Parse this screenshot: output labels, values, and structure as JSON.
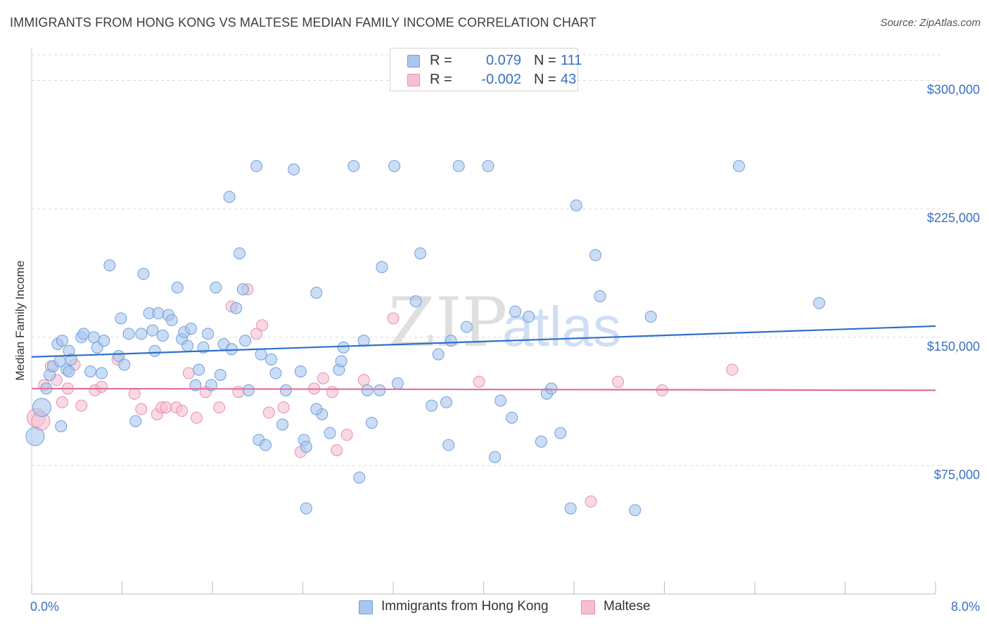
{
  "title": "IMMIGRANTS FROM HONG KONG VS MALTESE MEDIAN FAMILY INCOME CORRELATION CHART",
  "source": "Source: ZipAtlas.com",
  "watermark": {
    "zip": "ZIP",
    "atlas": "atlas"
  },
  "colors": {
    "blue_fill": "#a9c6ef",
    "blue_stroke": "#6f9edb",
    "blue_line": "#2f6fcd",
    "pink_fill": "#f5bfd1",
    "pink_stroke": "#e78fae",
    "pink_line": "#e0709a",
    "axis_text": "#3a6fc4",
    "grid": "#d9d9d9"
  },
  "legend": {
    "rows": [
      {
        "label": "R =",
        "r_value": "0.079",
        "n_label": "N =",
        "n_value": "111",
        "series": "blue"
      },
      {
        "label": "R =",
        "r_value": "-0.002",
        "n_label": "N =",
        "n_value": "43",
        "series": "pink"
      }
    ]
  },
  "bottom_legend": [
    {
      "label": "Immigrants from Hong Kong",
      "series": "blue"
    },
    {
      "label": "Maltese",
      "series": "pink"
    }
  ],
  "chart_data": {
    "type": "scatter",
    "xlabel": "",
    "ylabel": "Median Family Income",
    "xlim": [
      0,
      8
    ],
    "ylim": [
      0,
      315000
    ],
    "x_tick_labels": {
      "min": "0.0%",
      "max": "8.0%"
    },
    "y_ticks": [
      {
        "value": 75000,
        "label": "$75,000"
      },
      {
        "value": 150000,
        "label": "$150,000"
      },
      {
        "value": 225000,
        "label": "$225,000"
      },
      {
        "value": 300000,
        "label": "$300,000"
      }
    ],
    "grid": "horizontal dashed",
    "series": [
      {
        "name": "Immigrants from Hong Kong",
        "color": "blue",
        "trend": {
          "start": [
            0,
            138500
          ],
          "end": [
            8,
            156500
          ]
        },
        "points": [
          [
            0.03,
            92000
          ],
          [
            0.09,
            109000
          ],
          [
            0.13,
            120000
          ],
          [
            0.16,
            128000
          ],
          [
            0.19,
            133000
          ],
          [
            0.23,
            146000
          ],
          [
            0.25,
            136000
          ],
          [
            0.26,
            98000
          ],
          [
            0.27,
            148000
          ],
          [
            0.31,
            131000
          ],
          [
            0.33,
            142000
          ],
          [
            0.35,
            137000
          ],
          [
            0.44,
            150000
          ],
          [
            0.46,
            152000
          ],
          [
            0.52,
            130000
          ],
          [
            0.55,
            150000
          ],
          [
            0.58,
            144000
          ],
          [
            0.62,
            129000
          ],
          [
            0.64,
            148000
          ],
          [
            0.69,
            192000
          ],
          [
            0.77,
            139000
          ],
          [
            0.79,
            161000
          ],
          [
            0.82,
            134000
          ],
          [
            0.86,
            152000
          ],
          [
            0.92,
            101000
          ],
          [
            0.97,
            152000
          ],
          [
            0.99,
            187000
          ],
          [
            1.04,
            164000
          ],
          [
            1.07,
            154000
          ],
          [
            1.09,
            142000
          ],
          [
            1.12,
            164000
          ],
          [
            1.16,
            151000
          ],
          [
            1.21,
            163000
          ],
          [
            1.24,
            160000
          ],
          [
            1.29,
            179000
          ],
          [
            1.33,
            149000
          ],
          [
            1.35,
            153000
          ],
          [
            1.38,
            145000
          ],
          [
            1.41,
            155000
          ],
          [
            1.45,
            122000
          ],
          [
            1.48,
            131000
          ],
          [
            1.52,
            144000
          ],
          [
            1.56,
            152000
          ],
          [
            1.59,
            122000
          ],
          [
            1.63,
            179000
          ],
          [
            1.67,
            128000
          ],
          [
            1.7,
            146000
          ],
          [
            1.75,
            232000
          ],
          [
            1.77,
            143000
          ],
          [
            1.81,
            167000
          ],
          [
            1.84,
            199000
          ],
          [
            1.87,
            178000
          ],
          [
            1.89,
            148000
          ],
          [
            1.92,
            119000
          ],
          [
            1.99,
            250000
          ],
          [
            2.01,
            90000
          ],
          [
            2.03,
            140000
          ],
          [
            2.07,
            87000
          ],
          [
            2.12,
            137000
          ],
          [
            2.16,
            129000
          ],
          [
            2.22,
            99000
          ],
          [
            2.25,
            119000
          ],
          [
            2.32,
            248000
          ],
          [
            2.38,
            130000
          ],
          [
            2.41,
            90000
          ],
          [
            2.43,
            86000
          ],
          [
            2.52,
            176000
          ],
          [
            2.57,
            105000
          ],
          [
            2.64,
            94000
          ],
          [
            2.72,
            131000
          ],
          [
            2.74,
            136000
          ],
          [
            2.76,
            144000
          ],
          [
            2.85,
            250000
          ],
          [
            2.9,
            68000
          ],
          [
            2.94,
            148000
          ],
          [
            2.97,
            119000
          ],
          [
            3.01,
            100000
          ],
          [
            3.08,
            119000
          ],
          [
            3.1,
            191000
          ],
          [
            3.24,
            123000
          ],
          [
            3.4,
            171000
          ],
          [
            3.44,
            199000
          ],
          [
            3.54,
            110000
          ],
          [
            3.6,
            140000
          ],
          [
            3.67,
            112000
          ],
          [
            3.69,
            87000
          ],
          [
            3.71,
            148000
          ],
          [
            3.78,
            250000
          ],
          [
            3.85,
            156000
          ],
          [
            4.04,
            250000
          ],
          [
            4.1,
            80000
          ],
          [
            4.15,
            113000
          ],
          [
            4.28,
            165000
          ],
          [
            4.4,
            162000
          ],
          [
            4.51,
            89000
          ],
          [
            4.56,
            117000
          ],
          [
            4.68,
            94000
          ],
          [
            4.77,
            50000
          ],
          [
            4.82,
            227000
          ],
          [
            4.99,
            198000
          ],
          [
            5.03,
            174000
          ],
          [
            5.34,
            49000
          ],
          [
            5.48,
            162000
          ],
          [
            6.26,
            250000
          ],
          [
            6.97,
            170000
          ],
          [
            2.43,
            50000
          ],
          [
            3.21,
            250000
          ],
          [
            4.6,
            120000
          ],
          [
            0.33,
            130000
          ],
          [
            4.25,
            103000
          ],
          [
            2.52,
            108000
          ]
        ]
      },
      {
        "name": "Maltese",
        "color": "pink",
        "trend": {
          "start": [
            0,
            120000
          ],
          "end": [
            8,
            119000
          ]
        },
        "points": [
          [
            0.04,
            103000
          ],
          [
            0.08,
            101000
          ],
          [
            0.11,
            122000
          ],
          [
            0.17,
            133000
          ],
          [
            0.22,
            125000
          ],
          [
            0.27,
            112000
          ],
          [
            0.32,
            120000
          ],
          [
            0.38,
            134000
          ],
          [
            0.44,
            110000
          ],
          [
            0.56,
            119000
          ],
          [
            0.62,
            121000
          ],
          [
            0.76,
            137000
          ],
          [
            0.91,
            117000
          ],
          [
            0.97,
            108000
          ],
          [
            1.11,
            105000
          ],
          [
            1.15,
            109000
          ],
          [
            1.19,
            109000
          ],
          [
            1.28,
            109000
          ],
          [
            1.33,
            107000
          ],
          [
            1.39,
            129000
          ],
          [
            1.46,
            103000
          ],
          [
            1.54,
            118000
          ],
          [
            1.66,
            109000
          ],
          [
            1.77,
            168000
          ],
          [
            1.83,
            118000
          ],
          [
            1.91,
            178000
          ],
          [
            1.99,
            152000
          ],
          [
            2.04,
            157000
          ],
          [
            2.1,
            106000
          ],
          [
            2.23,
            109000
          ],
          [
            2.38,
            83000
          ],
          [
            2.5,
            120000
          ],
          [
            2.58,
            126000
          ],
          [
            2.66,
            118000
          ],
          [
            2.7,
            84000
          ],
          [
            2.79,
            93000
          ],
          [
            2.94,
            125000
          ],
          [
            3.2,
            161000
          ],
          [
            3.96,
            124000
          ],
          [
            4.95,
            54000
          ],
          [
            5.19,
            124000
          ],
          [
            5.58,
            119000
          ],
          [
            6.2,
            131000
          ]
        ]
      }
    ]
  }
}
